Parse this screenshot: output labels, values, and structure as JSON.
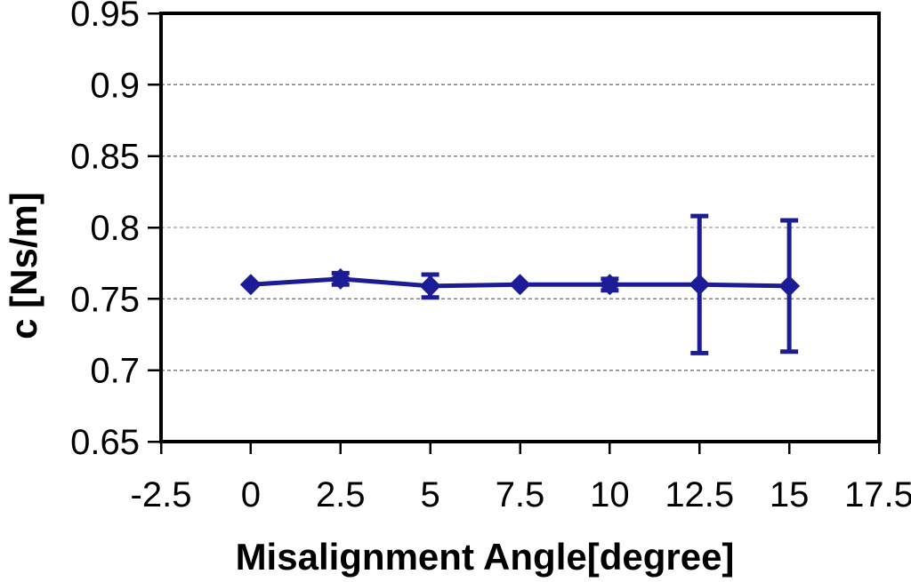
{
  "figure": {
    "background": "#ffffff",
    "axis_color": "#000000",
    "grid_color": "#808080",
    "series_color": "#1c1c96"
  },
  "chart_data": {
    "type": "line",
    "title": "",
    "xlabel": "Misalignment Angle[degree]",
    "ylabel": "c [Ns/m]",
    "x": [
      0,
      2.5,
      5,
      7.5,
      10,
      12.5,
      15
    ],
    "y": [
      0.76,
      0.764,
      0.759,
      0.76,
      0.76,
      0.76,
      0.759
    ],
    "yerr": [
      0,
      0.004,
      0.008,
      0,
      0.004,
      0.048,
      0.046
    ],
    "xlim": [
      -2.5,
      17.5
    ],
    "ylim": [
      0.65,
      0.95
    ],
    "xticks": [
      -2.5,
      0,
      2.5,
      5,
      7.5,
      10,
      12.5,
      15,
      17.5
    ],
    "xtick_labels": [
      "-2.5",
      "0",
      "2.5",
      "5",
      "7.5",
      "10",
      "12.5",
      "15",
      "17.5"
    ],
    "yticks": [
      0.65,
      0.7,
      0.75,
      0.8,
      0.85,
      0.9,
      0.95
    ],
    "ytick_labels": [
      "0.65",
      "0.7",
      "0.75",
      "0.8",
      "0.85",
      "0.9",
      "0.95"
    ],
    "grid": "horizontal-dashed",
    "legend": "none",
    "marker": "diamond"
  }
}
